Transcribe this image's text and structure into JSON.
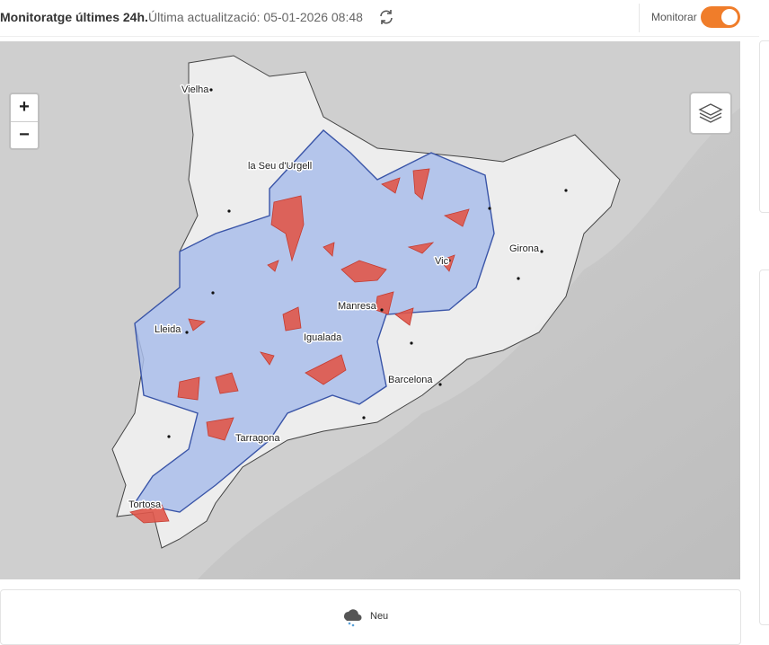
{
  "header": {
    "title": "Monitoratge últimes 24h.",
    "updated": "Última actualització: 05-01-2026 08:48",
    "toggle_label": "Monitorar"
  },
  "map": {
    "zoom_in": "+",
    "zoom_out": "−",
    "cities": [
      "Vielha",
      "la Seu d'Urgell",
      "Girona",
      "Vic",
      "Lleida",
      "Manresa",
      "Igualada",
      "Barcelona",
      "Tarragona",
      "Tortosa"
    ]
  },
  "legend": {
    "items": [
      "Neu"
    ]
  }
}
